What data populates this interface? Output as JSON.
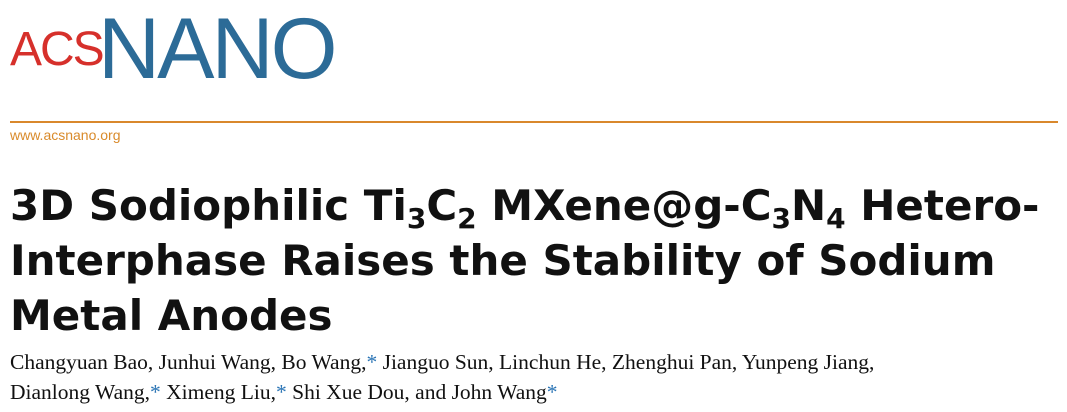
{
  "header": {
    "logo_acs": "ACS",
    "logo_nano": "NANO",
    "url": "www.acsnano.org"
  },
  "title": {
    "lines": [
      [
        {
          "text": "3D Sodiophilic Ti"
        },
        {
          "sub": "3"
        },
        {
          "text": "C"
        },
        {
          "sub": "2"
        },
        {
          "text": " MXene@g-C"
        },
        {
          "sub": "3"
        },
        {
          "text": "N"
        },
        {
          "sub": "4"
        },
        {
          "text": " Hetero-"
        }
      ],
      [
        {
          "text": "Interphase Raises the Stability of Sodium"
        }
      ],
      [
        {
          "text": "Metal Anodes"
        }
      ]
    ]
  },
  "authors": {
    "lines": [
      [
        {
          "text": "Changyuan Bao, Junhui Wang, Bo Wang,"
        },
        {
          "mark": "*"
        },
        {
          "text": " Jianguo Sun, Linchun He, Zhenghui Pan, Yunpeng Jiang,"
        }
      ],
      [
        {
          "text": "Dianlong Wang,"
        },
        {
          "mark": "*"
        },
        {
          "text": " Ximeng Liu,"
        },
        {
          "mark": "*"
        },
        {
          "text": " Shi Xue Dou, and John Wang"
        },
        {
          "mark": "*"
        }
      ]
    ]
  }
}
